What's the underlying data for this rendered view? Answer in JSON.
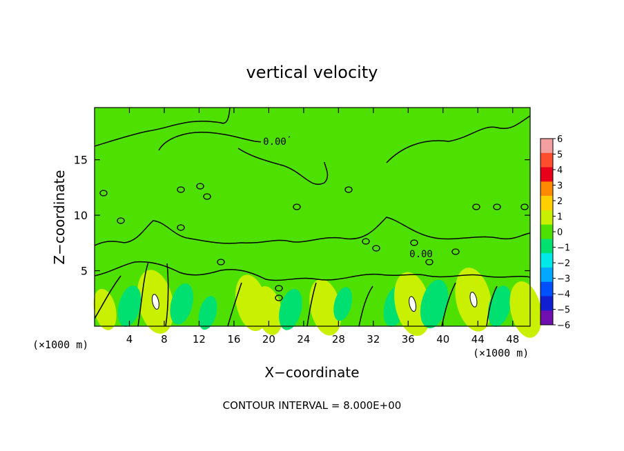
{
  "chart_data": {
    "type": "heatmap",
    "title": "vertical velocity",
    "xlabel": "X−coordinate",
    "ylabel": "Z−coordinate",
    "x_unit_left": "(×1000 m)",
    "x_unit_right": "(×1000 m)",
    "xlim": [
      0,
      50
    ],
    "ylim": [
      0,
      19.7
    ],
    "x_ticks": [
      4,
      8,
      12,
      16,
      20,
      24,
      28,
      32,
      36,
      40,
      44,
      48
    ],
    "y_ticks": [
      5,
      10,
      15
    ],
    "colorbar": {
      "levels": [
        "6",
        "5",
        "4",
        "3",
        "2",
        "1",
        "0",
        "−1",
        "−2",
        "−3",
        "−4",
        "−5",
        "−6"
      ],
      "colors": [
        "#f4a0a0",
        "#ff4d2e",
        "#e8001a",
        "#ff8a00",
        "#ffd000",
        "#c8f000",
        "#4ee000",
        "#00e070",
        "#00e8e8",
        "#00a8ff",
        "#0050ff",
        "#1020d0",
        "#7010b0"
      ]
    },
    "contour_labels": [
      "0.00",
      "0.00"
    ],
    "footer": "CONTOUR INTERVAL = 8.000E+00",
    "features": [
      {
        "x": 7.0,
        "z": 2.2,
        "w": 6.0,
        "sign": 1
      },
      {
        "x": 1.2,
        "z": 1.5,
        "w": 2.5,
        "sign": 1
      },
      {
        "x": 4.0,
        "z": 1.8,
        "w": -3.0,
        "sign": -1
      },
      {
        "x": 10.0,
        "z": 2.0,
        "w": -2.5,
        "sign": -1
      },
      {
        "x": 13.0,
        "z": 1.2,
        "w": -1.5,
        "sign": -1
      },
      {
        "x": 18.0,
        "z": 2.1,
        "w": 4.5,
        "sign": 1
      },
      {
        "x": 20.0,
        "z": 1.4,
        "w": 4.0,
        "sign": 1
      },
      {
        "x": 22.5,
        "z": 1.5,
        "w": -3.0,
        "sign": -1
      },
      {
        "x": 26.5,
        "z": 1.7,
        "w": 5.0,
        "sign": 1
      },
      {
        "x": 28.5,
        "z": 2.0,
        "w": -2.0,
        "sign": -1
      },
      {
        "x": 34.5,
        "z": 1.8,
        "w": -3.0,
        "sign": -1
      },
      {
        "x": 36.5,
        "z": 2.0,
        "w": 6.0,
        "sign": 1
      },
      {
        "x": 39.0,
        "z": 2.0,
        "w": -3.5,
        "sign": -1
      },
      {
        "x": 43.5,
        "z": 2.4,
        "w": 6.0,
        "sign": 1
      },
      {
        "x": 46.5,
        "z": 1.8,
        "w": -3.0,
        "sign": -1
      },
      {
        "x": 49.5,
        "z": 1.5,
        "w": 5.0,
        "sign": 1
      }
    ]
  }
}
